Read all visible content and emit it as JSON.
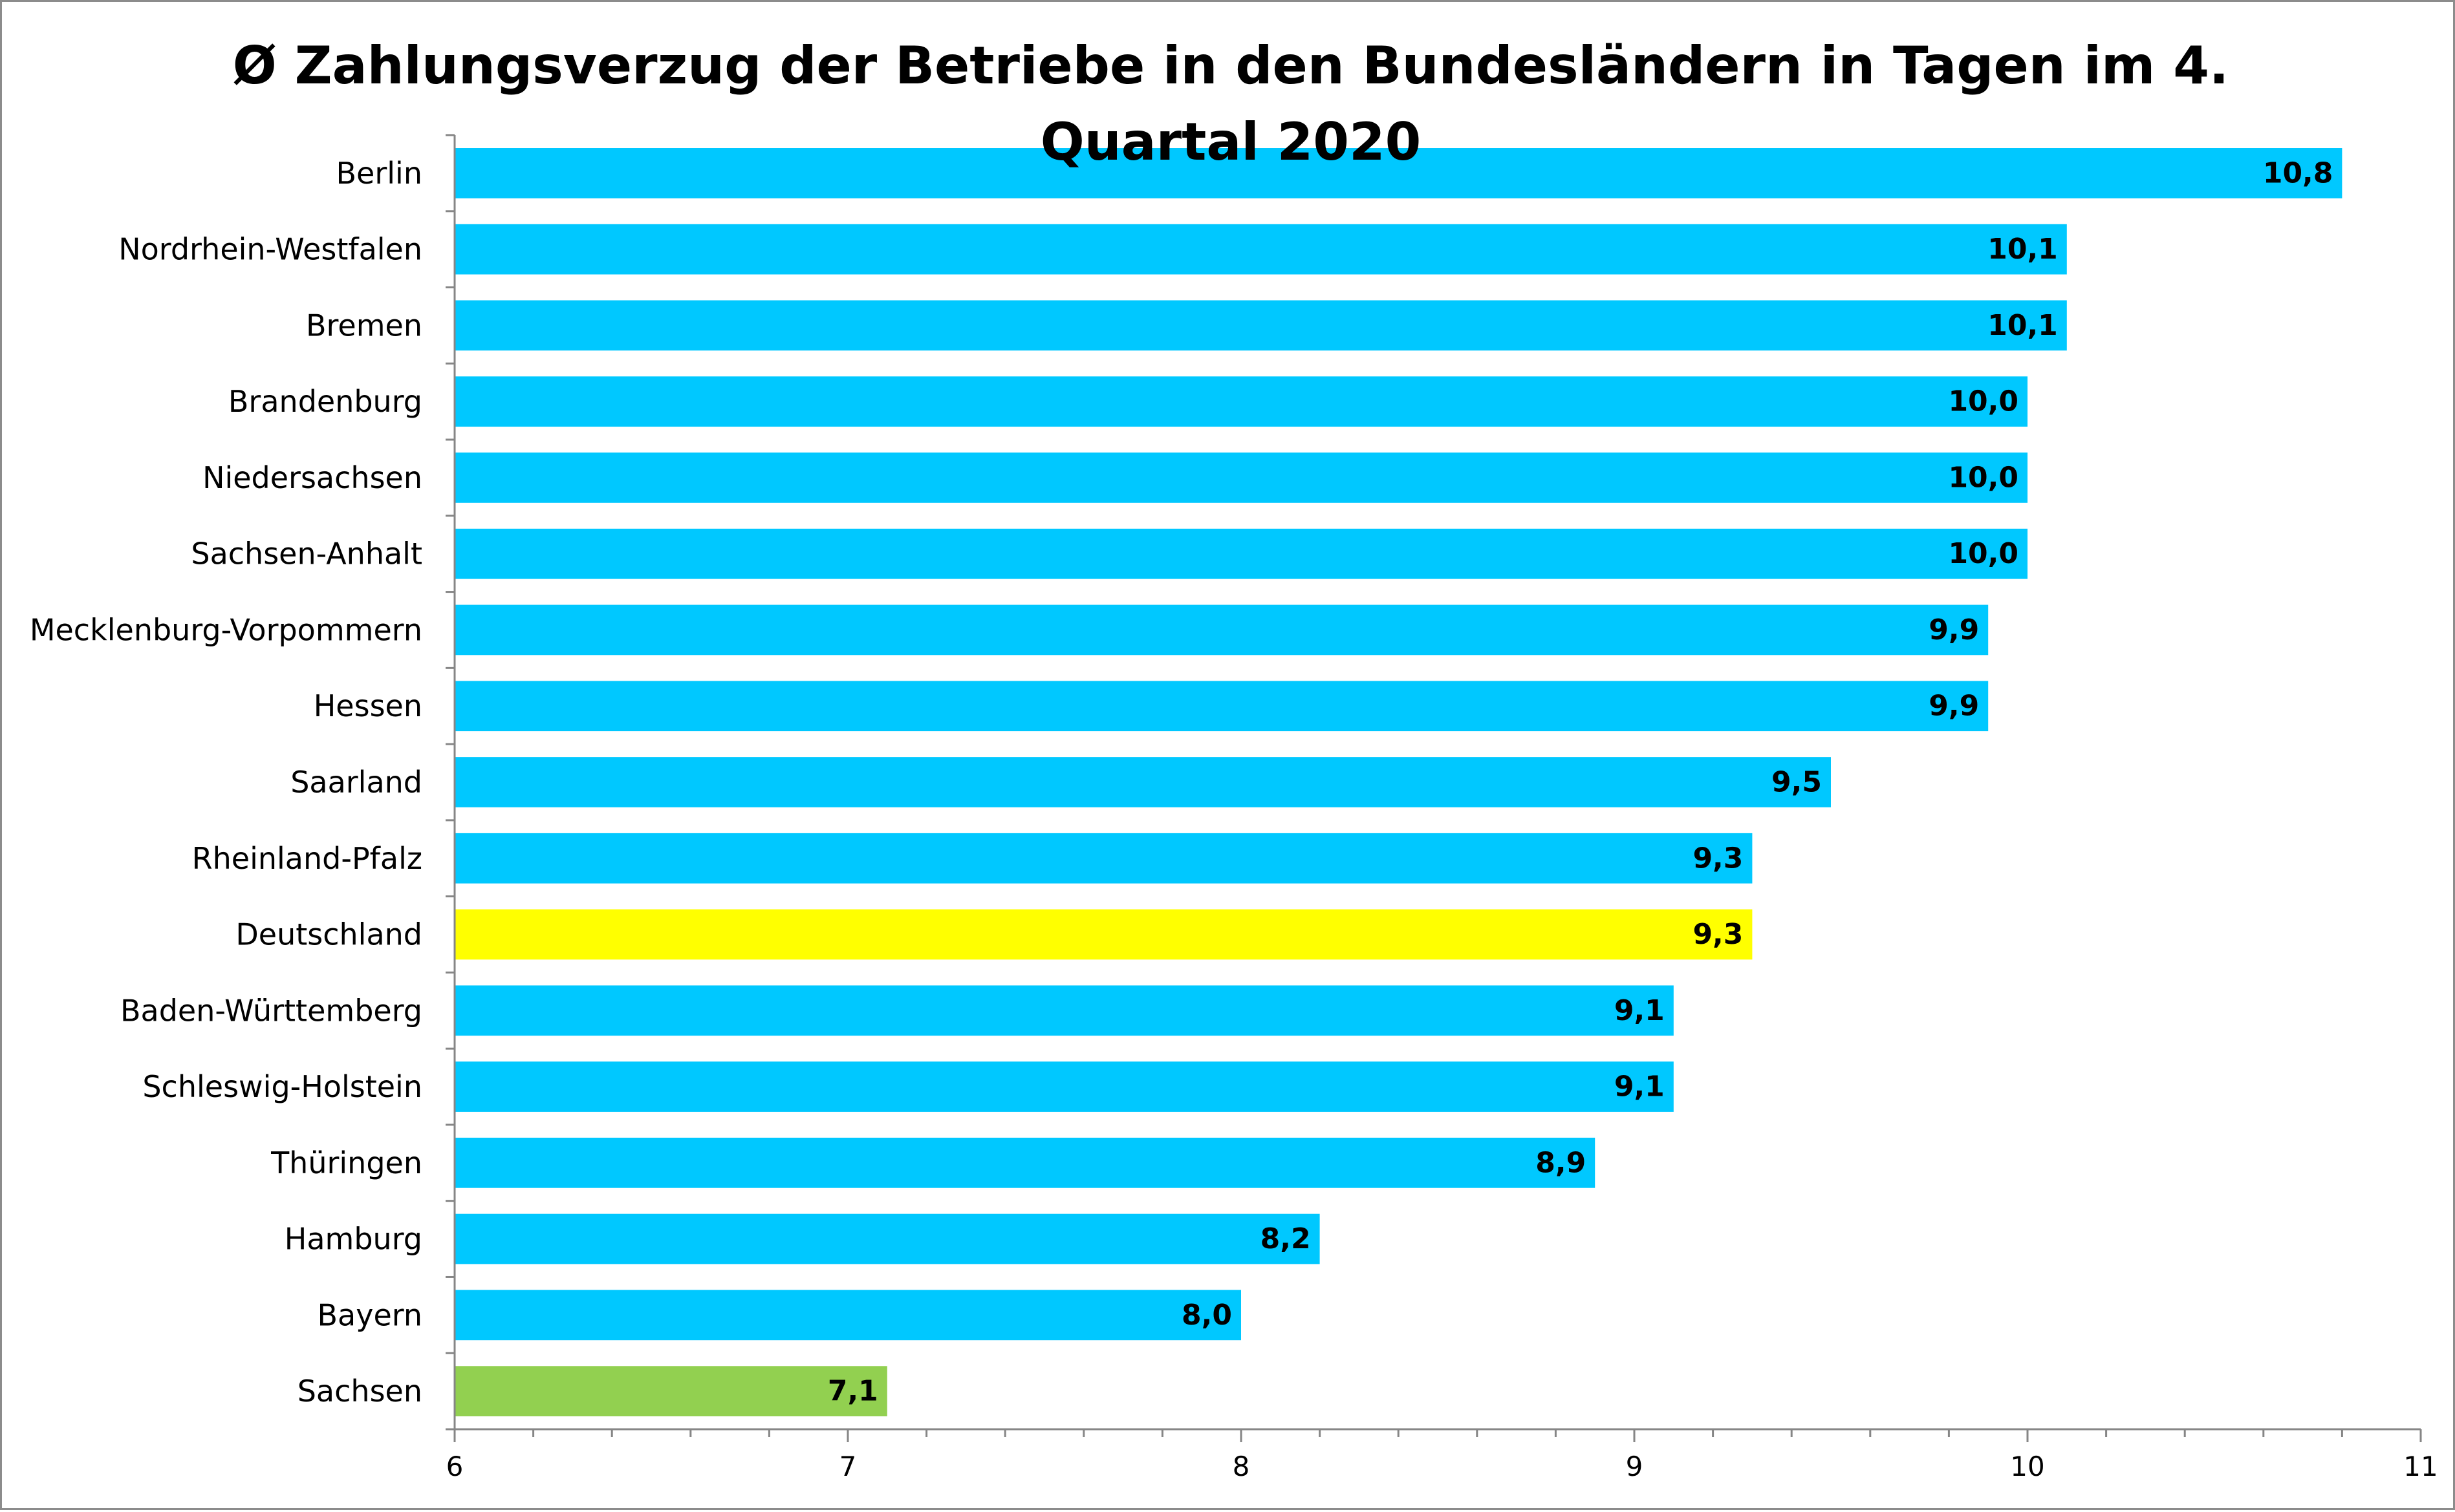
{
  "chart_data": {
    "type": "bar",
    "orientation": "horizontal",
    "title": "Ø Zahlungsverzug der Betriebe in den Bundesländern in Tagen im 4. Quartal 2020",
    "xlabel": "",
    "ylabel": "",
    "xlim": [
      6,
      11
    ],
    "x_ticks": [
      "6",
      "7",
      "8",
      "9",
      "10",
      "11"
    ],
    "grid": false,
    "legend": "none",
    "categories": [
      "Berlin",
      "Nordrhein-Westfalen",
      "Bremen",
      "Brandenburg",
      "Niedersachsen",
      "Sachsen-Anhalt",
      "Mecklenburg-Vorpommern",
      "Hessen",
      "Saarland",
      "Rheinland-Pfalz",
      "Deutschland",
      "Baden-Württemberg",
      "Schleswig-Holstein",
      "Thüringen",
      "Hamburg",
      "Bayern",
      "Sachsen"
    ],
    "values": [
      10.8,
      10.1,
      10.1,
      10.0,
      10.0,
      10.0,
      9.9,
      9.9,
      9.5,
      9.3,
      9.3,
      9.1,
      9.1,
      8.9,
      8.2,
      8.0,
      7.1
    ],
    "value_labels": [
      "10,8",
      "10,1",
      "10,1",
      "10,0",
      "10,0",
      "10,0",
      "9,9",
      "9,9",
      "9,5",
      "9,3",
      "9,3",
      "9,1",
      "9,1",
      "8,9",
      "8,2",
      "8,0",
      "7,1"
    ],
    "bar_colors": [
      "#00C8FF",
      "#00C8FF",
      "#00C8FF",
      "#00C8FF",
      "#00C8FF",
      "#00C8FF",
      "#00C8FF",
      "#00C8FF",
      "#00C8FF",
      "#00C8FF",
      "#FFFF00",
      "#00C8FF",
      "#00C8FF",
      "#00C8FF",
      "#00C8FF",
      "#00C8FF",
      "#92D050"
    ]
  }
}
